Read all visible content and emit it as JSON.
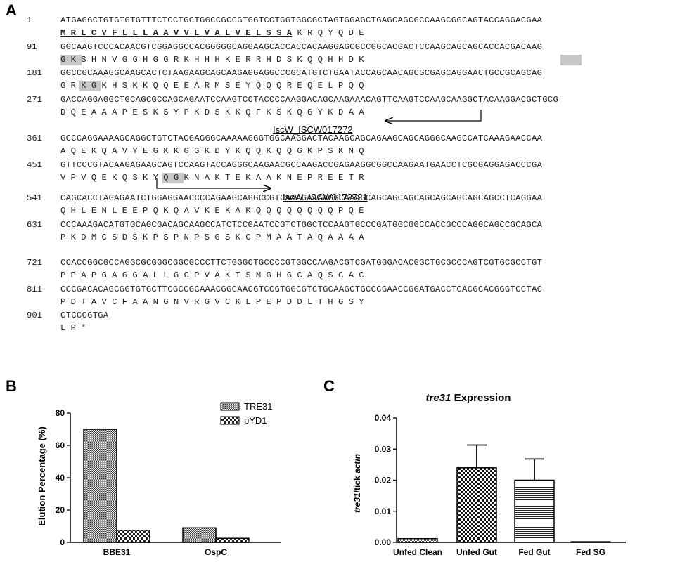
{
  "panels": {
    "a": "A",
    "b": "B",
    "c": "C"
  },
  "sequence": {
    "nt_lines": [
      {
        "num": "1",
        "seq": "ATGAGGCTGTGTGTGTTTCTCCTGCTGGCCGCCGTGGTCCTGGTGGCGCTAGTGGAGCTGAGCAGCGCCAAGCGGCAGTACCAGGACGAA"
      },
      {
        "num": "91",
        "seq": "GGCAAGTCCCACAACGTCGGAGGCCACGGGGGCAGGAAGCACCACCACAAGGAGCGCCGGCACGACTCCAAGCAGCAGCACCACGACAAG"
      },
      {
        "num": "181",
        "seq": "GGCCGCAAAGGCAAGCACTCTAAGAAGCAGCAAGAGGAGGCCCGCATGTCTGAATACCAGCAACAGCGCGAGCAGGAACTGCCGCAGCAG"
      },
      {
        "num": "271",
        "seq": "GACCAGGAGGCTGCAGCGCCAGCAGAATCCAAGTCCTACCCCAAGGACAGCAAGAAACAGTTCAAGTCCAAGCAAGGCTACAAGGACGCTGCG"
      },
      {
        "num": "361",
        "seq": "GCCCAGGAAAAGCAGGCTGTCTACGAGGGCAAAAAGGGTGGCAAGGACTACAAGCAGCAGAAGCAGCAGGGCAAGCCATCAAAGAACCAA"
      },
      {
        "num": "451",
        "seq": "GTTCCCGTACAAGAGAAGCAGTCCAAGTACCAGGGCAAGAACGCCAAGACCGAGAAGGCGGCCAAGAATGAACCTCGCGAGGAGACCCGA"
      },
      {
        "num": "541",
        "seq": "CAGCACCTAGAGAATCTGGAGGAACCCCAGAAGCAGGCCGTCAAAGAAAAGGCAAAGCAGCAGCAGCAGCAGCAGCAGCAGCCTCAGGAA"
      },
      {
        "num": "631",
        "seq": "CCCAAAGACATGTGCAGCGACAGCAAGCCATCTCCGAATCCGTCTGGCTCCAAGTGCCCGATGGCGGCCACCGCCCAGGCAGCCGCAGCA"
      },
      {
        "num": "721",
        "seq": "CCACCGGCGCCAGGCGCGGGCGGCGCCCTTCTGGGCTGCCCCGTGGCCAAGACGTCGATGGGACACGGCTGCGCCCAGTCGTGCGCCTGT"
      },
      {
        "num": "811",
        "seq": "CCCGACACAGCGGTGTGCTTCGCCGCAAACGGCAACGTCCGTGGCGTCTGCAAGCTGCCCGAACCGGATGACCTCACGCACGGGTCCTAC"
      },
      {
        "num": "901",
        "seq": "CTCCCGTGA"
      }
    ],
    "aa_lines": [
      {
        "sig": "M R L C V F L L L A A V V L V A L V E L S S A",
        "rest": " K R Q Y Q D E"
      },
      {
        "sig": "",
        "rest": "G K S H N V G G H G G R K H H H K E R R H D S K Q Q H H D K"
      },
      {
        "sig": "",
        "rest": "G R K G K H S K K Q Q E E A R M S E Y Q Q Q R E Q E L P Q Q"
      },
      {
        "sig": "",
        "rest": "D Q E A A A P E S K S Y P K D S K K Q F K S K Q G Y K D A A"
      },
      {
        "sig": "",
        "rest": "A Q E K Q A V Y E G K K G G K D Y K Q Q K Q Q G K P S K N Q"
      },
      {
        "sig": "",
        "rest": "V P V Q E K Q S K Y Q G K N A K T E K A A K N E P R E E T R"
      },
      {
        "sig": "",
        "rest": "Q H L E N L E E P Q K Q A V K E K A K Q Q Q Q Q Q Q Q P Q E"
      },
      {
        "sig": "",
        "rest": "P K D M C S D S K P S P N P S G S K C P M A A T A Q A A A A"
      },
      {
        "sig": "",
        "rest": "P P A P G A G G A L L G C P V A K T S M G H G C A Q S C A C"
      },
      {
        "sig": "",
        "rest": "P D T A V C F A A N G N V R G V C K L P E P D D L T H G S Y"
      },
      {
        "sig": "",
        "rest": "L P *"
      }
    ],
    "primers": {
      "reverse": "IscW_ISCW017272",
      "forward": "IscW_ISCW0172721"
    }
  },
  "chart_data": [
    {
      "type": "bar",
      "panel": "B",
      "categories": [
        "BBE31",
        "OspC"
      ],
      "series": [
        {
          "name": "TRE31",
          "values": [
            70,
            9
          ],
          "pattern": "dense-check"
        },
        {
          "name": "pYD1",
          "values": [
            7.5,
            2.5
          ],
          "pattern": "coarse-check"
        }
      ],
      "title": "",
      "xlabel": "",
      "ylabel": "Elution Percentage (%)",
      "ylim": [
        0,
        80
      ],
      "yticks": [
        "0",
        "20",
        "40",
        "60",
        "80"
      ],
      "legend": "top-right"
    },
    {
      "type": "bar",
      "panel": "C",
      "title_italic": "tre31",
      "title_rest": " Expression",
      "categories": [
        "Unfed Clean",
        "Unfed Gut",
        "Fed Gut",
        "Fed SG"
      ],
      "values": [
        0.0012,
        0.024,
        0.02,
        0.0002
      ],
      "errors": [
        0.0,
        0.0073,
        0.0068,
        0.0
      ],
      "patterns": [
        "fine-hatch",
        "check",
        "horizontal-lines",
        "fine-hatch"
      ],
      "ylabel_italic1": "tre31",
      "ylabel_mid": "/tick ",
      "ylabel_italic2": "actin",
      "ylim": [
        0,
        0.04
      ],
      "yticks": [
        "0.00",
        "0.01",
        "0.02",
        "0.03",
        "0.04"
      ]
    }
  ]
}
